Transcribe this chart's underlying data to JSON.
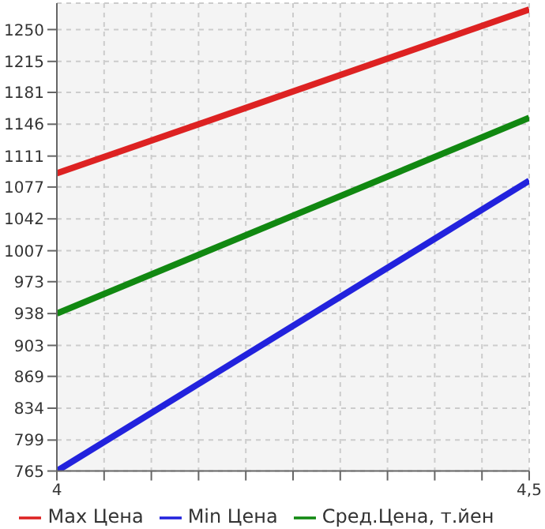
{
  "chart_data": {
    "type": "line",
    "x": [
      4,
      4.5
    ],
    "series": [
      {
        "name": "Max Цена",
        "color": "#dd2222",
        "values": [
          1092,
          1272
        ]
      },
      {
        "name": "Min Цена",
        "color": "#2222dd",
        "values": [
          765,
          1084
        ]
      },
      {
        "name": "Сред.Цена, т.йен",
        "color": "#118811",
        "values": [
          938,
          1153
        ]
      }
    ],
    "xlim": [
      4,
      4.5
    ],
    "xticks": [
      4,
      {
        "value": 4.05,
        "label": null
      },
      {
        "value": 4.1,
        "label": null
      },
      {
        "value": 4.15,
        "label": null
      },
      {
        "value": 4.2,
        "label": null
      },
      {
        "value": 4.25,
        "label": null
      },
      {
        "value": 4.3,
        "label": null
      },
      {
        "value": 4.35,
        "label": null
      },
      {
        "value": 4.4,
        "label": null
      },
      {
        "value": 4.45,
        "label": null
      },
      {
        "value": 4.5,
        "label": "4,5"
      }
    ],
    "ylim": [
      765,
      1279
    ],
    "yticks": [
      765,
      799,
      834,
      869,
      903,
      938,
      973,
      1007,
      1042,
      1077,
      1111,
      1146,
      1181,
      1215,
      1250
    ],
    "grid": true,
    "legend": "bottom",
    "marker": "none",
    "line_style": "solid"
  }
}
